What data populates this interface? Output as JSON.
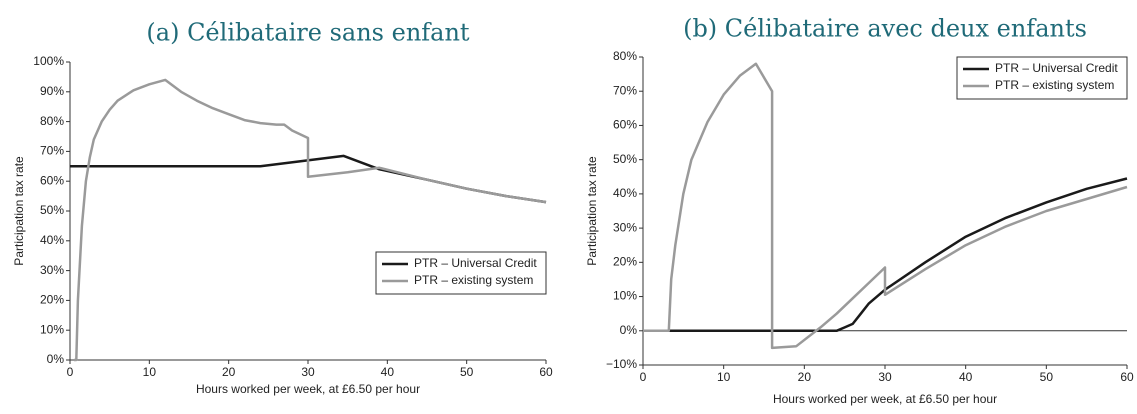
{
  "chart_data": [
    {
      "type": "line",
      "title": "(a) Célibataire sans enfant",
      "x_label": "Hours worked per week, at £6.50 per hour",
      "y_label": "Participation tax rate",
      "xlim": [
        0,
        60
      ],
      "ylim": [
        0,
        100
      ],
      "xticks": [
        0,
        10,
        20,
        30,
        40,
        50,
        60
      ],
      "yticks": [
        {
          "value": 0,
          "label": "0%"
        },
        {
          "value": 10,
          "label": "10%"
        },
        {
          "value": 20,
          "label": "20%"
        },
        {
          "value": 30,
          "label": "30%"
        },
        {
          "value": 40,
          "label": "40%"
        },
        {
          "value": 50,
          "label": "50%"
        },
        {
          "value": 60,
          "label": "60%"
        },
        {
          "value": 70,
          "label": "70%"
        },
        {
          "value": 80,
          "label": "80%"
        },
        {
          "value": 90,
          "label": "90%"
        },
        {
          "value": 100,
          "label": "100%"
        }
      ],
      "legend": "lower right",
      "series": [
        {
          "name": "PTR – Universal Credit",
          "color": "#1a1a1a",
          "x": [
            0,
            24,
            34.5,
            39,
            45,
            50,
            55,
            60
          ],
          "values": [
            65,
            65,
            68.5,
            64,
            60.5,
            57.5,
            55,
            53
          ]
        },
        {
          "name": "PTR – existing system",
          "color": "#9a9a9a",
          "x": [
            0.5,
            0.8,
            1,
            1.5,
            2,
            2.5,
            3,
            4,
            5,
            6,
            8,
            10,
            12,
            14,
            16,
            18,
            20,
            22,
            24,
            26,
            27,
            28,
            30,
            30,
            35,
            39,
            45,
            50,
            55,
            60
          ],
          "values": [
            0,
            0,
            20,
            45,
            60,
            68,
            74,
            80,
            84,
            87,
            90.5,
            92.5,
            94,
            90,
            87,
            84.5,
            82.5,
            80.5,
            79.5,
            79,
            79,
            77,
            74.5,
            61.5,
            63,
            64.5,
            60.5,
            57.5,
            55,
            53
          ]
        }
      ]
    },
    {
      "type": "line",
      "title": "(b) Célibataire avec deux enfants",
      "x_label": "Hours worked per week, at £6.50 per hour",
      "y_label": "Participation tax rate",
      "xlim": [
        0,
        60
      ],
      "ylim": [
        -10,
        80
      ],
      "xticks": [
        0,
        10,
        20,
        30,
        40,
        50,
        60
      ],
      "yticks": [
        {
          "value": -10,
          "label": "−10%"
        },
        {
          "value": 0,
          "label": "0%"
        },
        {
          "value": 10,
          "label": "10%"
        },
        {
          "value": 20,
          "label": "20%"
        },
        {
          "value": 30,
          "label": "30%"
        },
        {
          "value": 40,
          "label": "40%"
        },
        {
          "value": 50,
          "label": "50%"
        },
        {
          "value": 60,
          "label": "60%"
        },
        {
          "value": 70,
          "label": "70%"
        },
        {
          "value": 80,
          "label": "80%"
        }
      ],
      "legend": "upper right",
      "zero_line": true,
      "series": [
        {
          "name": "PTR – Universal Credit",
          "color": "#1a1a1a",
          "x": [
            0,
            24,
            25,
            26,
            27,
            28,
            30,
            35,
            40,
            45,
            50,
            55,
            60
          ],
          "values": [
            0,
            0,
            1,
            2,
            5,
            8,
            12,
            20,
            27.5,
            33,
            37.5,
            41.5,
            44.5
          ]
        },
        {
          "name": "PTR – existing system",
          "color": "#9a9a9a",
          "x": [
            0,
            3.2,
            3.5,
            4,
            5,
            6,
            8,
            10,
            12,
            14,
            16,
            16,
            19,
            22,
            24,
            26,
            28,
            30,
            30,
            35,
            40,
            45,
            50,
            55,
            60
          ],
          "values": [
            0,
            0,
            15,
            25,
            40,
            50,
            61,
            69,
            74.5,
            78,
            70,
            -5,
            -4.5,
            1,
            5,
            9.5,
            14,
            18.5,
            10.5,
            18,
            25,
            30.5,
            35,
            38.5,
            42
          ]
        }
      ]
    }
  ]
}
